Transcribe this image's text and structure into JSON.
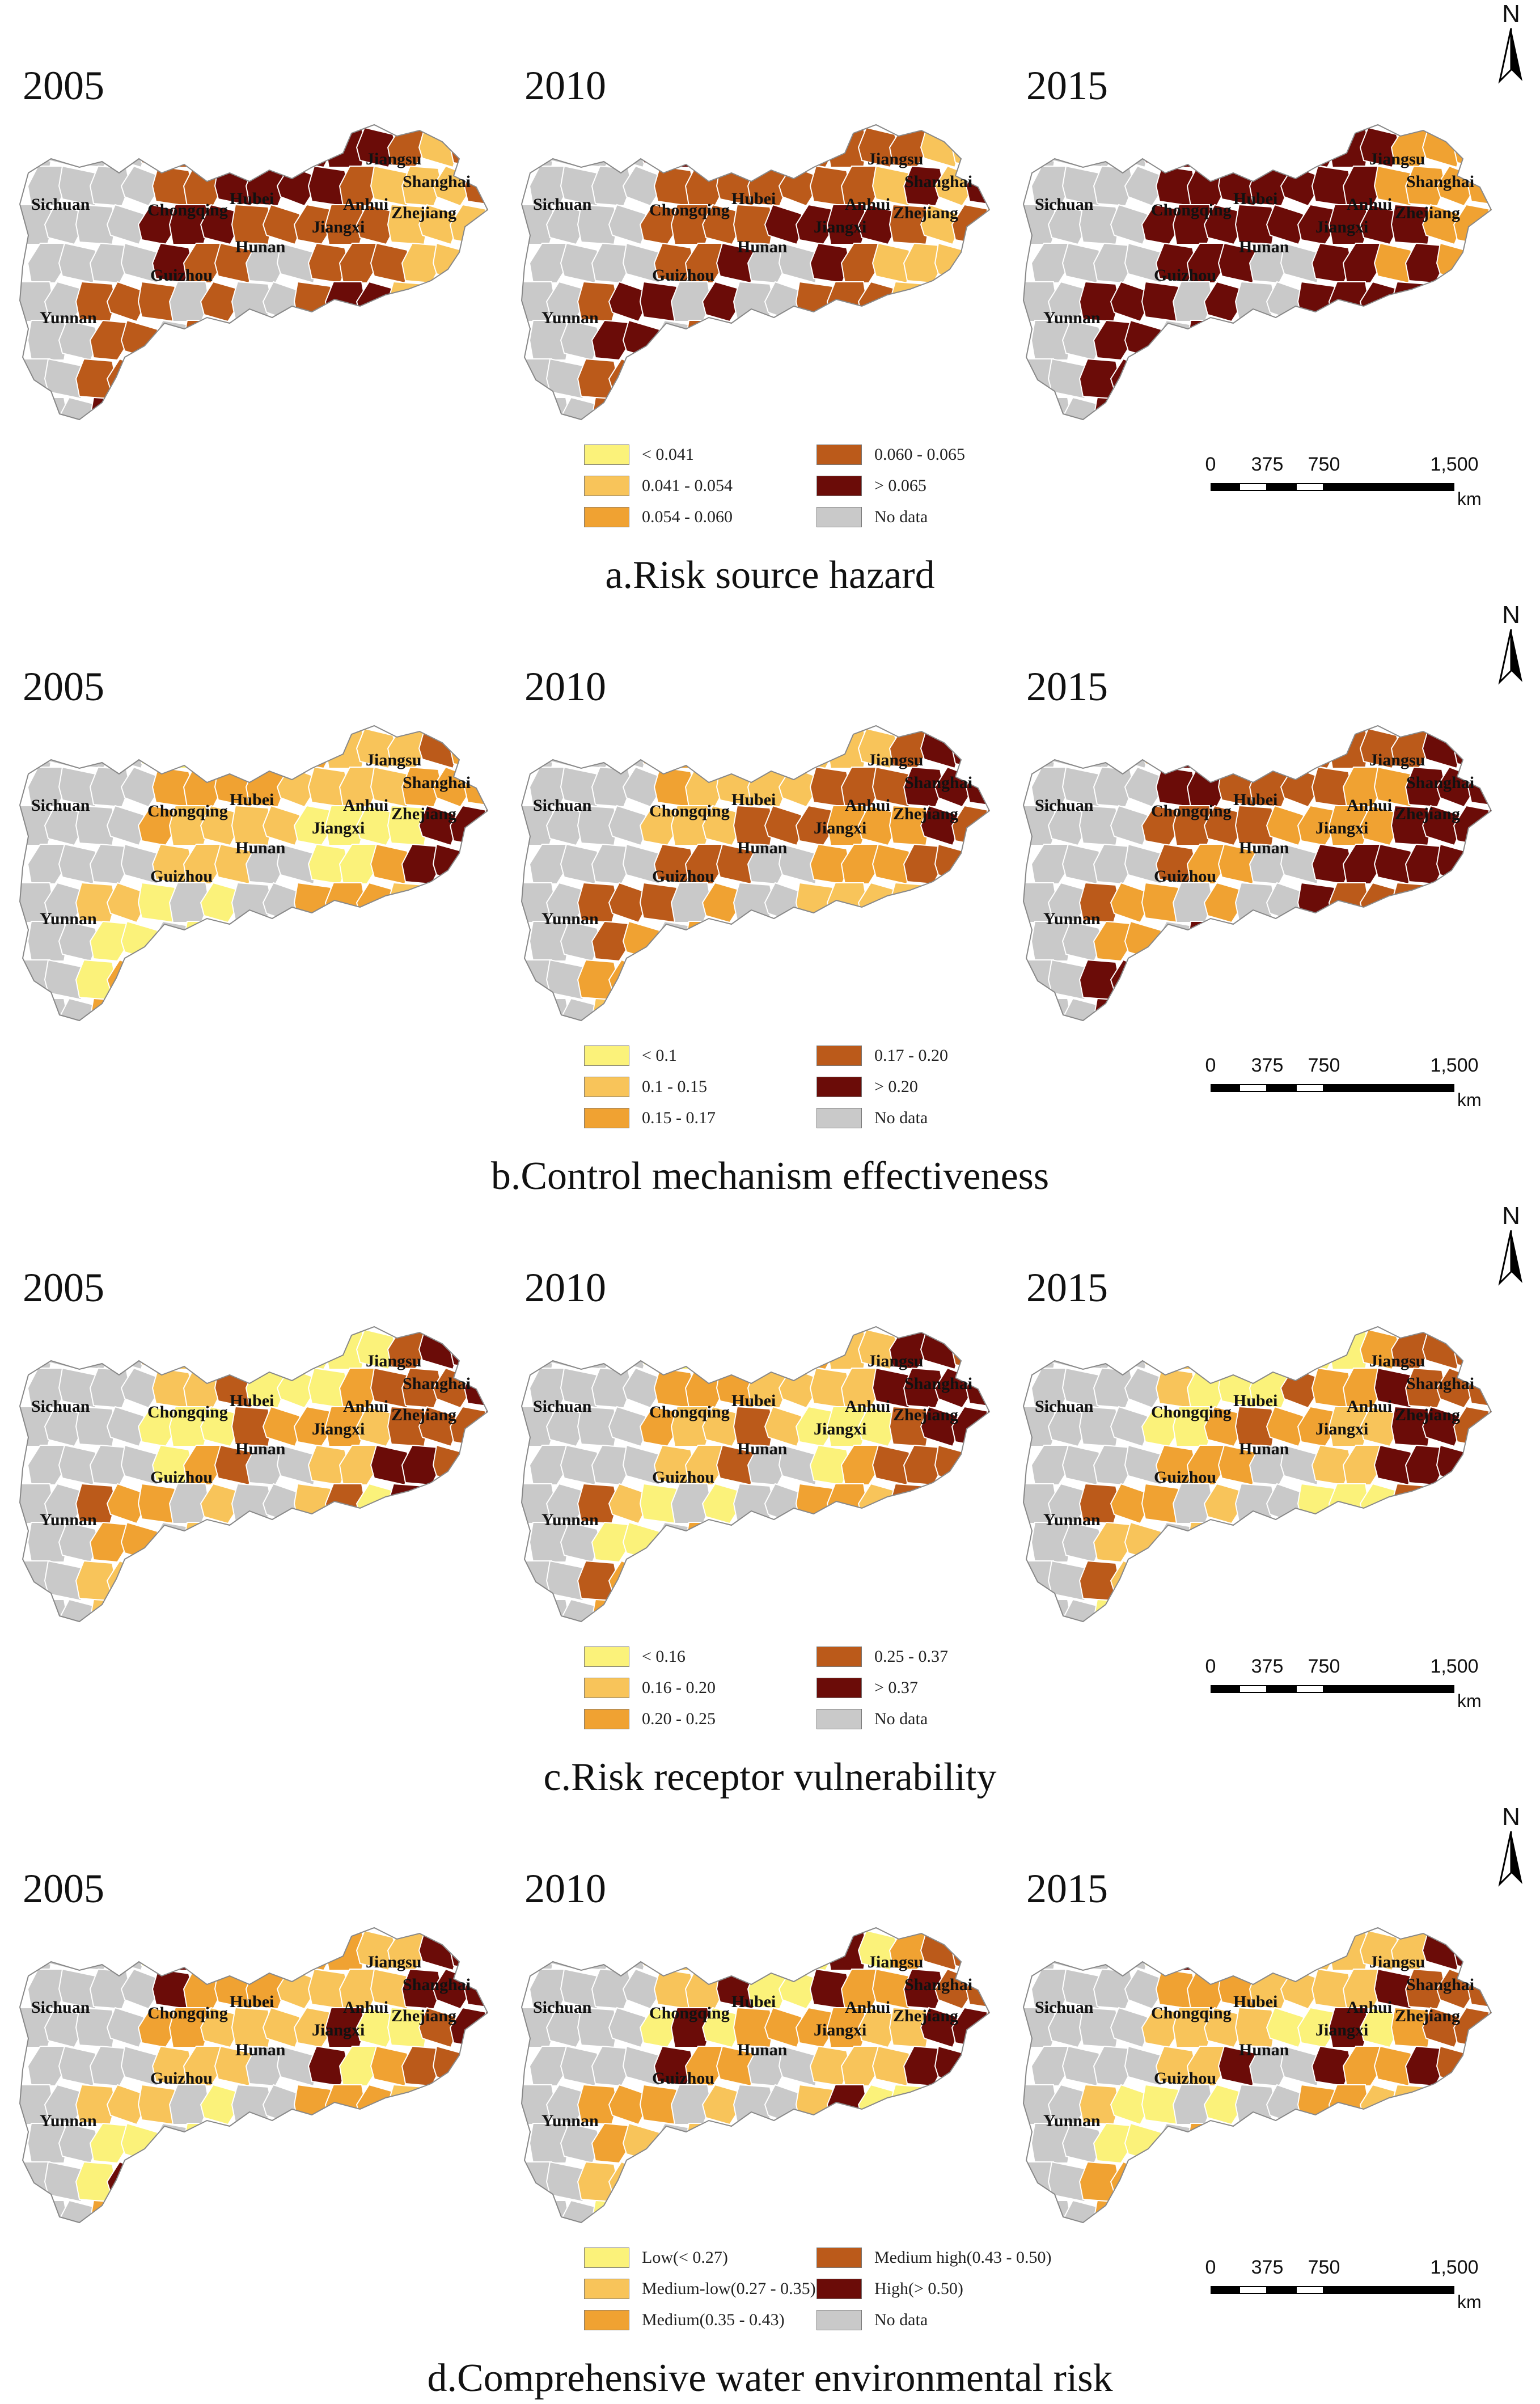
{
  "years": [
    "2005",
    "2010",
    "2015"
  ],
  "provinces": [
    "Sichuan",
    "Chongqing",
    "Hubei",
    "Anhui",
    "Jiangsu",
    "Shanghai",
    "Zhejiang",
    "Jiangxi",
    "Hunan",
    "Guizhou",
    "Yunnan"
  ],
  "north_label": "N",
  "scale_bar": {
    "ticks": [
      "0",
      "375",
      "750",
      "1,500"
    ],
    "unit": "km"
  },
  "colors": {
    "c1": "#fbf27a",
    "c2": "#f8c45a",
    "c3": "#f0a232",
    "c4": "#bb5a1a",
    "c5": "#6b0c08",
    "nodata": "#c9c9c9"
  },
  "panels": [
    {
      "caption": "a.Risk source hazard",
      "legend": [
        "< 0.041",
        "0.041 - 0.054",
        "0.054 - 0.060",
        "0.060 - 0.065",
        "> 0.065",
        "No data"
      ]
    },
    {
      "caption": "b.Control mechanism effectiveness",
      "legend": [
        "< 0.1",
        "0.1 - 0.15",
        "0.15 - 0.17",
        "0.17 - 0.20",
        "> 0.20",
        "No data"
      ]
    },
    {
      "caption": "c.Risk receptor vulnerability",
      "legend": [
        "< 0.16",
        "0.16 - 0.20",
        "0.20 - 0.25",
        "0.25 - 0.37",
        "> 0.37",
        "No data"
      ]
    },
    {
      "caption": "d.Comprehensive water environmental risk",
      "legend": [
        "Low(< 0.27)",
        "Medium-low(0.27 - 0.35)",
        "Medium(0.35 - 0.43)",
        "Medium  high(0.43 - 0.50)",
        "High(> 0.50)",
        "No data"
      ]
    }
  ]
}
